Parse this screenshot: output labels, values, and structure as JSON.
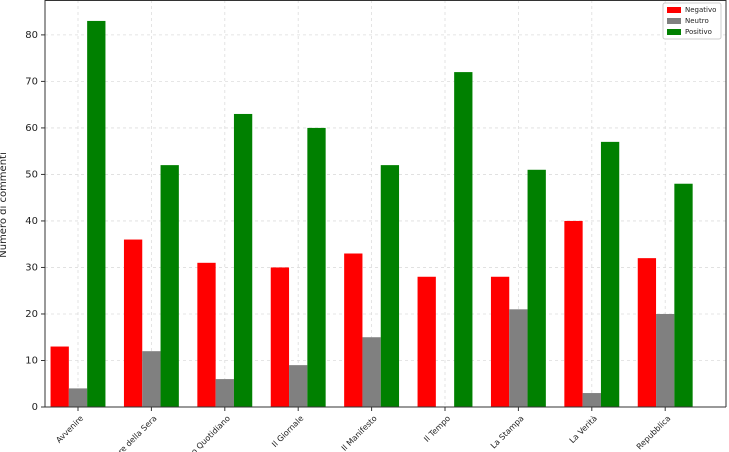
{
  "chart_data": {
    "type": "bar",
    "y_label": "Numero di commenti",
    "categories": [
      "Avvenire",
      "orriere della Sera",
      "Fatto Quotidiano",
      "Il Giornale",
      "Il Manifesto",
      "Il Tempo",
      "La Stampa",
      "La Verità",
      "Repubblica"
    ],
    "series": [
      {
        "name": "Negativo",
        "color": "#ff0000",
        "values": [
          13,
          36,
          31,
          30,
          33,
          28,
          28,
          40,
          32
        ]
      },
      {
        "name": "Neutro",
        "color": "#808080",
        "values": [
          4,
          12,
          6,
          9,
          15,
          0,
          21,
          3,
          20
        ]
      },
      {
        "name": "Positivo",
        "color": "#008000",
        "values": [
          83,
          52,
          63,
          60,
          52,
          72,
          51,
          57,
          48
        ]
      }
    ],
    "ylim": [
      0,
      87.5
    ],
    "yticks": [
      0,
      10,
      20,
      30,
      40,
      50,
      60,
      70,
      80
    ],
    "grid": true,
    "legend": "upper right"
  }
}
